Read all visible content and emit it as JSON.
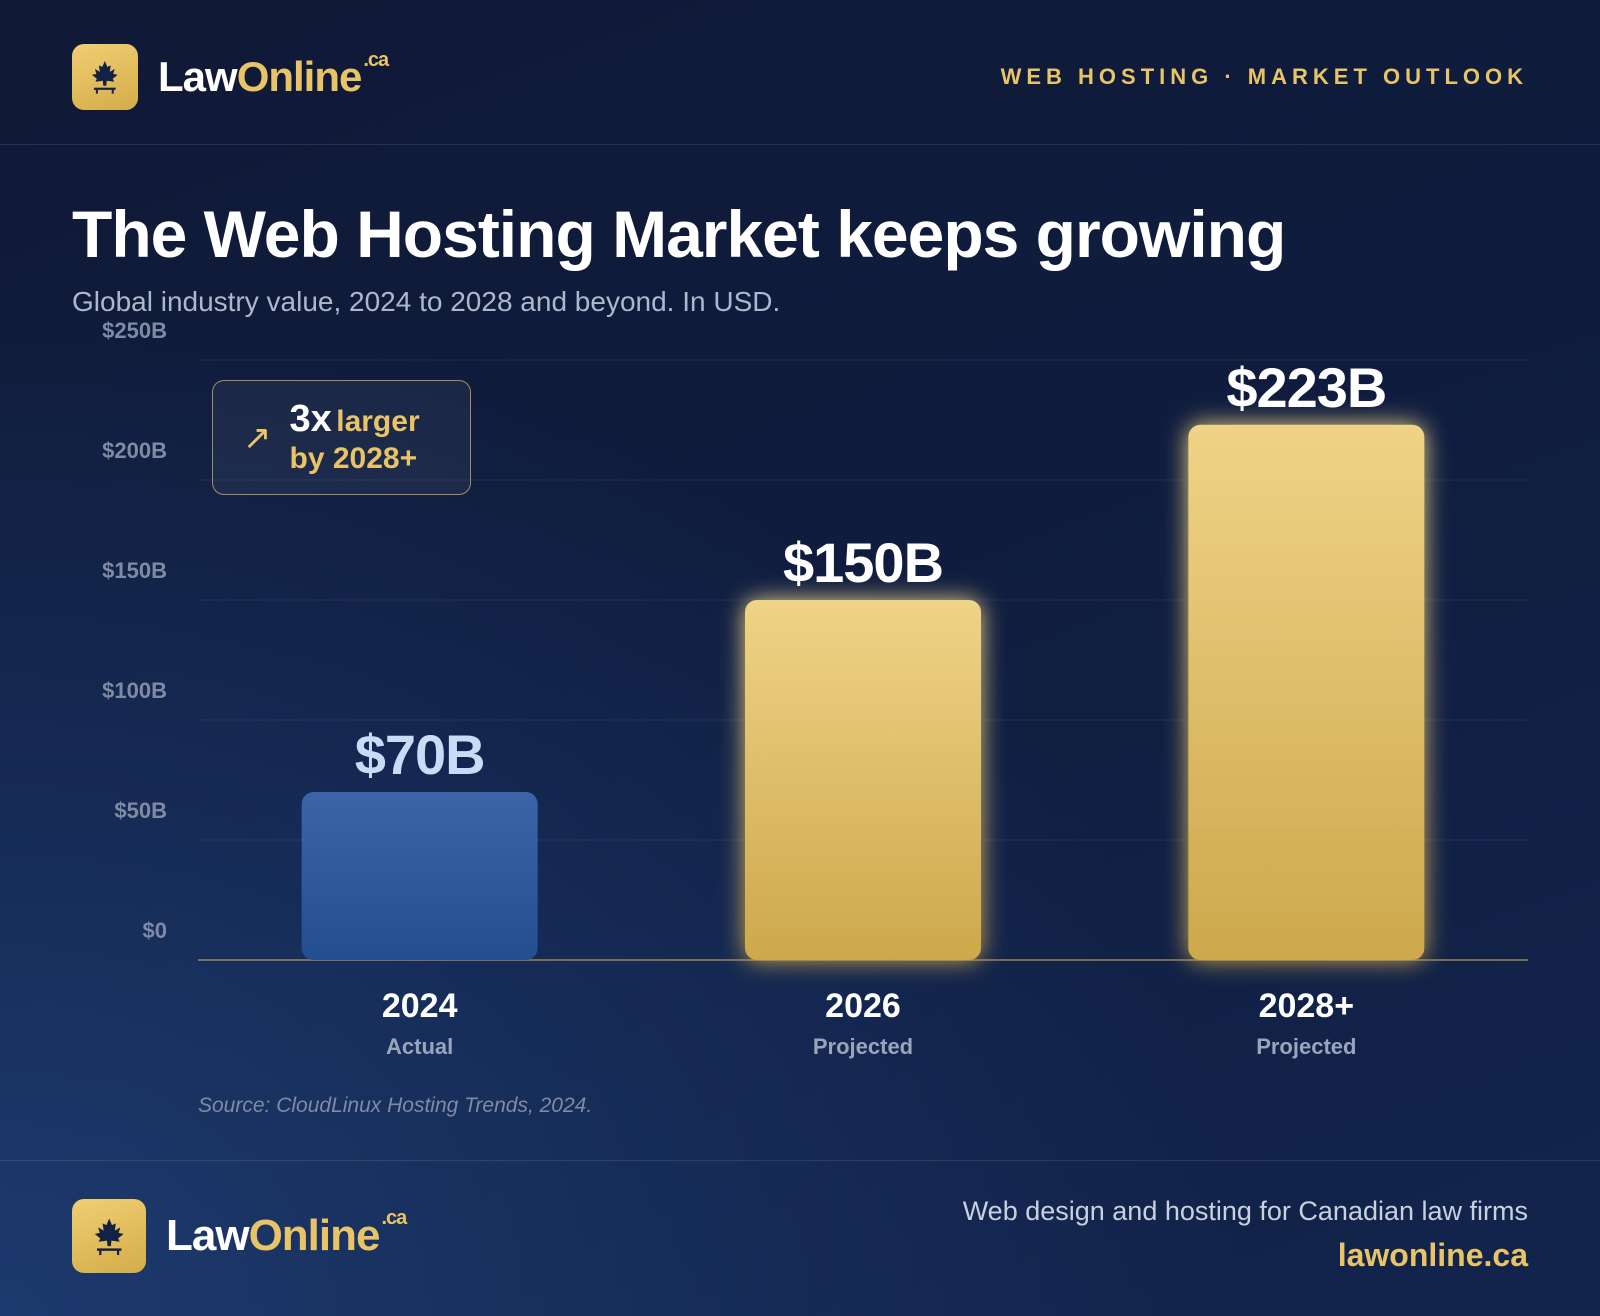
{
  "brand": {
    "law": "Law",
    "online": "Online",
    "tld": ".ca"
  },
  "kicker": "WEB HOSTING · MARKET OUTLOOK",
  "title": "The Web Hosting Market keeps growing",
  "subtitle": "Global industry value, 2024 to 2028 and beyond. In USD.",
  "callout": {
    "arrow": "↗",
    "big": "3x",
    "small_inline": "larger",
    "small_line2": "by 2028+"
  },
  "source": "Source: CloudLinux Hosting Trends, 2024.",
  "footer": {
    "tagline": "Web design and hosting for Canadian law firms",
    "site": "lawonline.ca"
  },
  "colors": {
    "gold": "#e8c467",
    "blue": "#2f5aa0",
    "navy": "#101a36"
  },
  "icons": {
    "logo": "maple-leaf-icon",
    "callout": "arrow-up-right-icon"
  },
  "chart_data": {
    "type": "bar",
    "title": "The Web Hosting Market keeps growing",
    "categories": [
      "2024",
      "2026",
      "2028+"
    ],
    "category_sublabels": [
      "Actual",
      "Projected",
      "Projected"
    ],
    "values": [
      70,
      150,
      223
    ],
    "value_labels": [
      "$70B",
      "$150B",
      "$223B"
    ],
    "bar_colors": [
      "#2f5aa0",
      "#e8c467",
      "#e8c467"
    ],
    "value_label_colors": [
      "#c9dbf7",
      "#ffffff",
      "#ffffff"
    ],
    "ylim": [
      0,
      250
    ],
    "yticks": [
      0,
      50,
      100,
      150,
      200,
      250
    ],
    "ytick_labels": [
      "$0",
      "$50B",
      "$100B",
      "$150B",
      "$200B",
      "$250B"
    ],
    "grid": true,
    "unit": "USD"
  }
}
